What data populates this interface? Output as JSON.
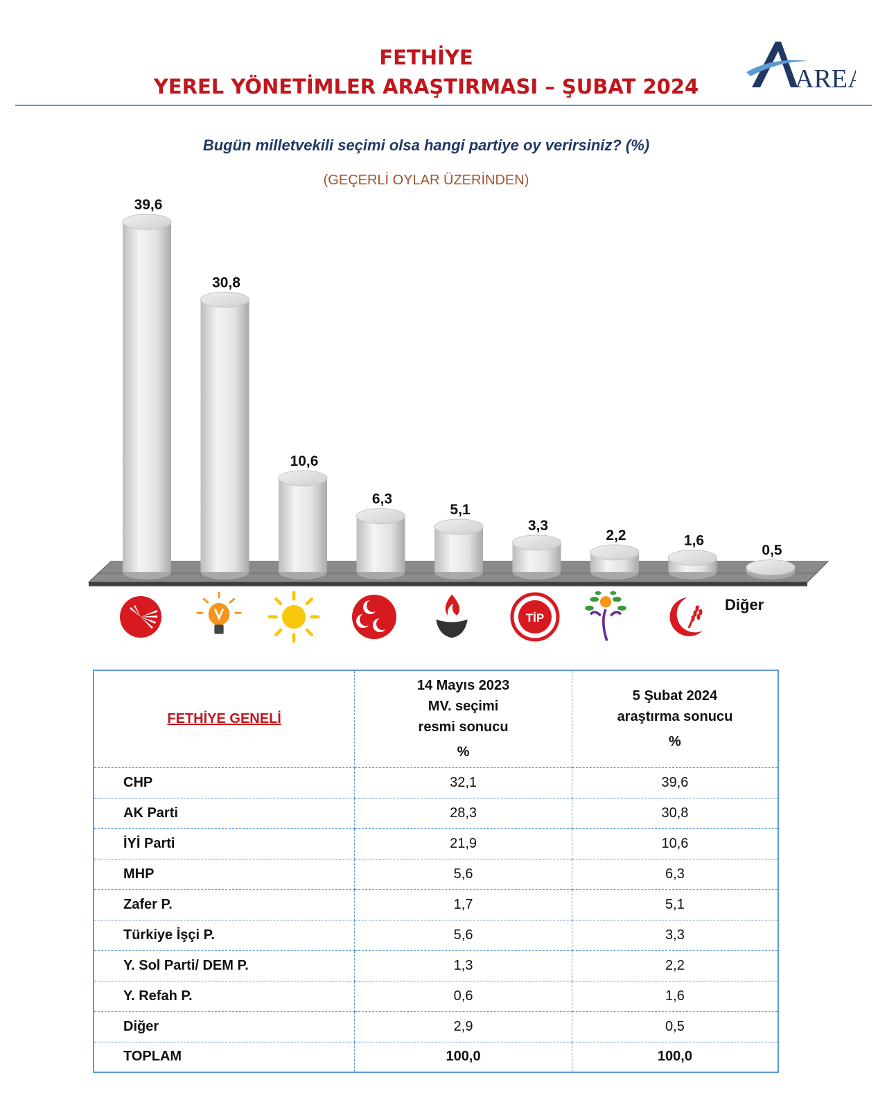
{
  "header": {
    "title_line1": "FETHİYE",
    "title_line2": "YEREL YÖNETİMLER ARAŞTIRMASI – ŞUBAT 2024",
    "logo_text": "AREA"
  },
  "question": "Bugün milletvekili seçimi olsa hangi partiye oy verirsiniz? (%)",
  "subnote": "(GEÇERLİ OYLAR ÜZERİNDEN)",
  "chart_data": {
    "type": "bar",
    "title": "Bugün milletvekili seçimi olsa hangi partiye oy verirsiniz? (%)",
    "subtitle": "(GEÇERLİ OYLAR ÜZERİNDEN)",
    "categories": [
      "chp",
      "ak-parti",
      "iyi-parti",
      "mhp",
      "zafer",
      "tip",
      "dem",
      "yeniden-refah",
      "Diğer"
    ],
    "values": [
      39.6,
      30.8,
      10.6,
      6.3,
      5.1,
      3.3,
      2.2,
      1.6,
      0.5
    ],
    "value_labels": [
      "39,6",
      "30,8",
      "10,6",
      "6,3",
      "5,1",
      "3,3",
      "2,2",
      "1,6",
      "0,5"
    ],
    "category_display": [
      "",
      "",
      "",
      "",
      "",
      "",
      "",
      "",
      "Diğer"
    ],
    "ylim": [
      0,
      40
    ],
    "grid": false,
    "legend": "none",
    "bar_style": "3d-cylinder",
    "bar_color": "#e6e6e6",
    "floor_color": "#808080"
  },
  "party_logos": {
    "chp_color": "#d71920",
    "akp_color": "#f7941d",
    "iyi_color": "#f9c80e",
    "mhp_color": "#d71920",
    "zafer_color": "#d71920",
    "tip_color": "#d71920",
    "dem_color": "#6a2c91",
    "refah_color": "#d71920",
    "tip_text": "TİP"
  },
  "table": {
    "corner": "FETHİYE GENELİ",
    "col1_lines": [
      "14 Mayıs 2023",
      "MV. seçimi",
      "resmi sonucu"
    ],
    "col1_unit": "%",
    "col2_lines": [
      "5 Şubat 2024",
      "araştırma sonucu"
    ],
    "col2_unit": "%",
    "rows": [
      {
        "party": "CHP",
        "a": "32,1",
        "b": "39,6"
      },
      {
        "party": "AK Parti",
        "a": "28,3",
        "b": "30,8"
      },
      {
        "party": "İYİ Parti",
        "a": "21,9",
        "b": "10,6"
      },
      {
        "party": "MHP",
        "a": "5,6",
        "b": "6,3"
      },
      {
        "party": "Zafer P.",
        "a": "1,7",
        "b": "5,1"
      },
      {
        "party": "Türkiye İşçi P.",
        "a": "5,6",
        "b": "3,3"
      },
      {
        "party": "Y. Sol Parti/ DEM P.",
        "a": "1,3",
        "b": "2,2"
      },
      {
        "party": "Y. Refah P.",
        "a": "0,6",
        "b": "1,6"
      },
      {
        "party": "Diğer",
        "a": "2,9",
        "b": "0,5"
      },
      {
        "party": "TOPLAM",
        "a": "100,0",
        "b": "100,0"
      }
    ]
  }
}
